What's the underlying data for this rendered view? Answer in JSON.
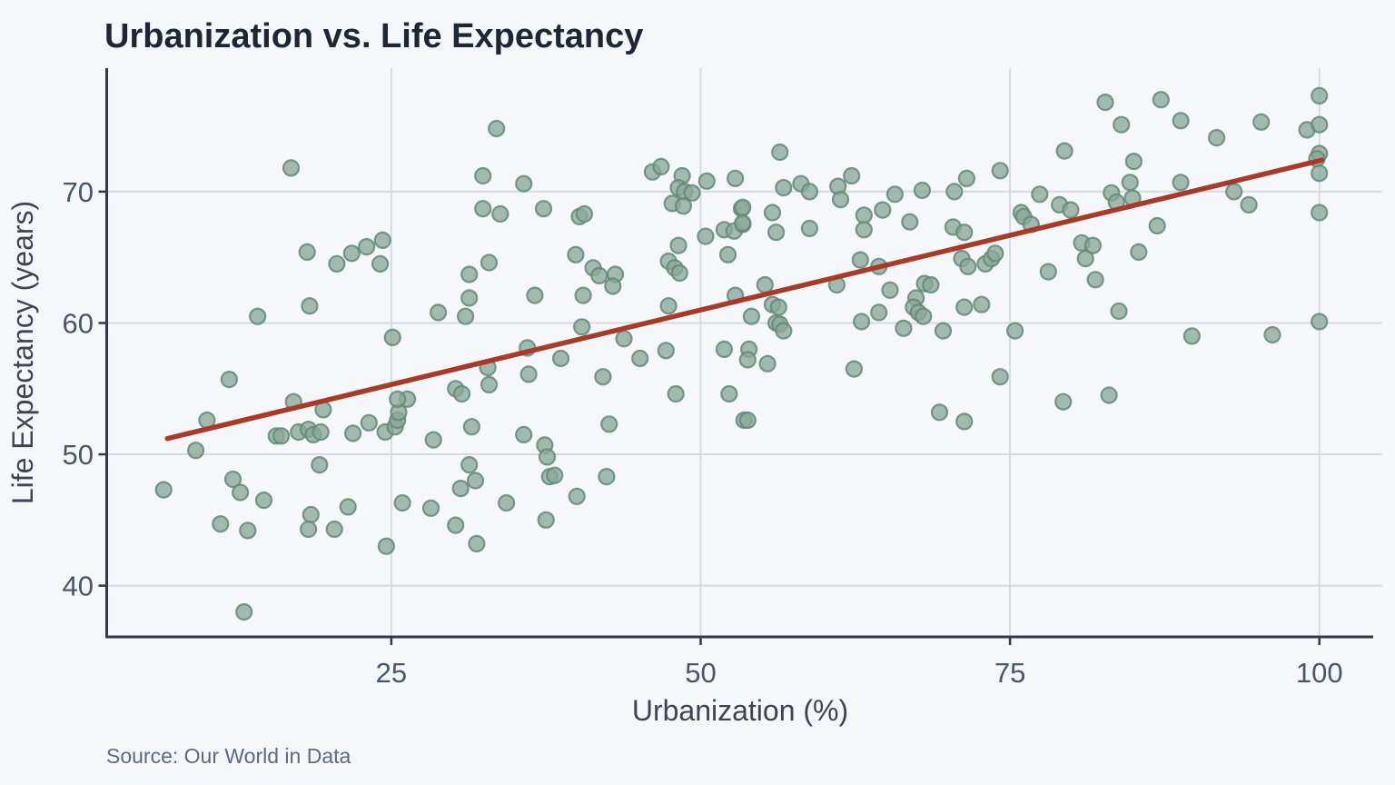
{
  "title": "Urbanization vs. Life Expectancy",
  "source": "Source: Our World in Data",
  "colors": {
    "background": "#f5f7fa",
    "gridline": "#d6dae3",
    "axis": "#323947",
    "tick_label": "#4a5568",
    "axis_title": "#3b4554",
    "title": "#1e2636",
    "source": "#5c6980",
    "point_fill": "#8aa89a",
    "point_stroke": "#628a76",
    "trend_line": "#a93a28"
  },
  "chart_data": {
    "type": "scatter",
    "title": "Urbanization vs. Life Expectancy",
    "xlabel": "Urbanization (%)",
    "ylabel": "Life Expectancy (years)",
    "x_ticks": [
      25,
      50,
      75,
      100
    ],
    "y_ticks": [
      40,
      50,
      60,
      70
    ],
    "xlim": [
      2.0,
      104.35
    ],
    "ylim": [
      36.1,
      79.4
    ],
    "grid": true,
    "legend": "none",
    "trend_line": {
      "x1": 6.9,
      "y1": 51.2,
      "x2": 100.2,
      "y2": 72.4
    },
    "points": [
      [
        16.9,
        71.8
      ],
      [
        18.2,
        65.4
      ],
      [
        20.6,
        64.5
      ],
      [
        21.8,
        65.3
      ],
      [
        23.0,
        65.8
      ],
      [
        24.3,
        66.3
      ],
      [
        24.1,
        64.5
      ],
      [
        18.4,
        61.3
      ],
      [
        14.2,
        60.5
      ],
      [
        25.1,
        58.9
      ],
      [
        11.9,
        55.7
      ],
      [
        10.1,
        52.6
      ],
      [
        9.2,
        50.3
      ],
      [
        17.1,
        54.0
      ],
      [
        19.5,
        53.4
      ],
      [
        15.7,
        51.4
      ],
      [
        16.1,
        51.4
      ],
      [
        17.5,
        51.7
      ],
      [
        18.3,
        51.9
      ],
      [
        18.7,
        51.5
      ],
      [
        19.3,
        51.7
      ],
      [
        21.9,
        51.6
      ],
      [
        23.2,
        52.4
      ],
      [
        24.5,
        51.7
      ],
      [
        25.3,
        52.1
      ],
      [
        25.5,
        52.6
      ],
      [
        25.6,
        53.2
      ],
      [
        26.3,
        54.2
      ],
      [
        25.5,
        54.2
      ],
      [
        19.2,
        49.2
      ],
      [
        6.6,
        47.3
      ],
      [
        12.2,
        48.1
      ],
      [
        12.8,
        47.1
      ],
      [
        14.7,
        46.5
      ],
      [
        18.5,
        45.4
      ],
      [
        18.3,
        44.3
      ],
      [
        21.5,
        46.0
      ],
      [
        20.4,
        44.3
      ],
      [
        11.2,
        44.7
      ],
      [
        13.4,
        44.2
      ],
      [
        25.9,
        46.3
      ],
      [
        24.6,
        43.0
      ],
      [
        13.1,
        38.0
      ],
      [
        33.5,
        74.8
      ],
      [
        32.4,
        71.2
      ],
      [
        35.7,
        70.6
      ],
      [
        46.1,
        71.5
      ],
      [
        46.8,
        71.9
      ],
      [
        48.5,
        71.2
      ],
      [
        48.2,
        70.3
      ],
      [
        48.7,
        70.0
      ],
      [
        49.3,
        69.9
      ],
      [
        50.5,
        70.8
      ],
      [
        52.8,
        71.0
      ],
      [
        32.4,
        68.7
      ],
      [
        33.8,
        68.3
      ],
      [
        37.3,
        68.7
      ],
      [
        40.2,
        68.1
      ],
      [
        40.6,
        68.3
      ],
      [
        47.7,
        69.1
      ],
      [
        48.6,
        68.9
      ],
      [
        53.3,
        68.7
      ],
      [
        51.9,
        67.1
      ],
      [
        52.7,
        67.0
      ],
      [
        53.4,
        67.5
      ],
      [
        50.4,
        66.6
      ],
      [
        48.2,
        65.9
      ],
      [
        39.9,
        65.2
      ],
      [
        32.9,
        64.6
      ],
      [
        31.3,
        63.7
      ],
      [
        41.3,
        64.2
      ],
      [
        41.8,
        63.6
      ],
      [
        43.1,
        63.7
      ],
      [
        42.9,
        62.8
      ],
      [
        47.4,
        64.7
      ],
      [
        47.9,
        64.2
      ],
      [
        48.3,
        63.8
      ],
      [
        52.2,
        65.2
      ],
      [
        31.3,
        61.9
      ],
      [
        31.0,
        60.5
      ],
      [
        28.8,
        60.8
      ],
      [
        36.6,
        62.1
      ],
      [
        40.5,
        62.1
      ],
      [
        40.4,
        59.7
      ],
      [
        43.8,
        58.8
      ],
      [
        47.4,
        61.3
      ],
      [
        52.8,
        62.1
      ],
      [
        36.0,
        58.1
      ],
      [
        47.2,
        57.9
      ],
      [
        51.9,
        58.0
      ],
      [
        30.2,
        55.0
      ],
      [
        30.7,
        54.6
      ],
      [
        32.8,
        56.6
      ],
      [
        32.9,
        55.3
      ],
      [
        36.1,
        56.1
      ],
      [
        38.7,
        57.3
      ],
      [
        42.1,
        55.9
      ],
      [
        42.6,
        52.3
      ],
      [
        45.1,
        57.3
      ],
      [
        48.0,
        54.6
      ],
      [
        52.3,
        54.6
      ],
      [
        53.5,
        52.6
      ],
      [
        28.4,
        51.1
      ],
      [
        31.5,
        52.1
      ],
      [
        35.7,
        51.5
      ],
      [
        37.4,
        50.7
      ],
      [
        37.6,
        49.8
      ],
      [
        31.3,
        49.2
      ],
      [
        31.8,
        48.0
      ],
      [
        30.6,
        47.4
      ],
      [
        37.8,
        48.3
      ],
      [
        38.2,
        48.4
      ],
      [
        42.4,
        48.3
      ],
      [
        40.0,
        46.8
      ],
      [
        34.3,
        46.3
      ],
      [
        28.2,
        45.9
      ],
      [
        30.2,
        44.6
      ],
      [
        37.5,
        45.0
      ],
      [
        31.9,
        43.2
      ],
      [
        56.4,
        73.0
      ],
      [
        56.7,
        70.3
      ],
      [
        58.1,
        70.6
      ],
      [
        58.8,
        70.0
      ],
      [
        61.1,
        70.4
      ],
      [
        62.2,
        71.2
      ],
      [
        61.3,
        69.4
      ],
      [
        65.7,
        69.8
      ],
      [
        67.9,
        70.1
      ],
      [
        70.5,
        70.0
      ],
      [
        71.5,
        71.0
      ],
      [
        74.2,
        71.6
      ],
      [
        77.4,
        69.8
      ],
      [
        79.0,
        69.0
      ],
      [
        53.4,
        68.8
      ],
      [
        53.4,
        67.6
      ],
      [
        55.8,
        68.4
      ],
      [
        56.1,
        66.9
      ],
      [
        58.8,
        67.2
      ],
      [
        63.2,
        68.2
      ],
      [
        63.2,
        67.1
      ],
      [
        64.7,
        68.6
      ],
      [
        66.9,
        67.7
      ],
      [
        70.4,
        67.3
      ],
      [
        71.3,
        66.9
      ],
      [
        75.9,
        68.4
      ],
      [
        76.1,
        68.1
      ],
      [
        76.7,
        67.5
      ],
      [
        62.9,
        64.8
      ],
      [
        64.4,
        64.3
      ],
      [
        71.1,
        64.9
      ],
      [
        71.6,
        64.3
      ],
      [
        73.0,
        64.5
      ],
      [
        73.5,
        64.9
      ],
      [
        73.8,
        65.3
      ],
      [
        78.1,
        63.9
      ],
      [
        55.2,
        62.9
      ],
      [
        61.0,
        62.9
      ],
      [
        65.3,
        62.5
      ],
      [
        68.1,
        63.0
      ],
      [
        68.6,
        62.9
      ],
      [
        67.4,
        61.9
      ],
      [
        67.2,
        61.2
      ],
      [
        67.6,
        60.8
      ],
      [
        68.0,
        60.5
      ],
      [
        55.8,
        61.4
      ],
      [
        56.3,
        61.2
      ],
      [
        54.1,
        60.5
      ],
      [
        56.1,
        60.0
      ],
      [
        56.4,
        59.9
      ],
      [
        56.7,
        59.4
      ],
      [
        63.0,
        60.1
      ],
      [
        64.4,
        60.8
      ],
      [
        66.4,
        59.6
      ],
      [
        69.6,
        59.4
      ],
      [
        71.3,
        61.2
      ],
      [
        72.7,
        61.4
      ],
      [
        75.4,
        59.4
      ],
      [
        53.9,
        58.0
      ],
      [
        53.8,
        57.2
      ],
      [
        55.4,
        56.9
      ],
      [
        62.4,
        56.5
      ],
      [
        74.2,
        55.9
      ],
      [
        53.8,
        52.6
      ],
      [
        69.3,
        53.2
      ],
      [
        71.3,
        52.5
      ],
      [
        82.7,
        76.8
      ],
      [
        87.2,
        77.0
      ],
      [
        84.0,
        75.1
      ],
      [
        88.8,
        75.4
      ],
      [
        91.7,
        74.1
      ],
      [
        95.3,
        75.3
      ],
      [
        99.0,
        74.7
      ],
      [
        100,
        77.3
      ],
      [
        100,
        75.1
      ],
      [
        79.4,
        73.1
      ],
      [
        85.0,
        72.3
      ],
      [
        100,
        72.9
      ],
      [
        99.8,
        72.5
      ],
      [
        100,
        71.4
      ],
      [
        84.7,
        70.7
      ],
      [
        88.8,
        70.7
      ],
      [
        83.2,
        69.9
      ],
      [
        83.6,
        69.2
      ],
      [
        84.9,
        69.5
      ],
      [
        79.9,
        68.6
      ],
      [
        93.1,
        70.0
      ],
      [
        94.3,
        69.0
      ],
      [
        100,
        68.4
      ],
      [
        86.9,
        67.4
      ],
      [
        80.8,
        66.1
      ],
      [
        81.7,
        65.9
      ],
      [
        81.1,
        64.9
      ],
      [
        85.4,
        65.4
      ],
      [
        81.9,
        63.3
      ],
      [
        83.8,
        60.9
      ],
      [
        100,
        60.1
      ],
      [
        89.7,
        59.0
      ],
      [
        96.2,
        59.1
      ],
      [
        79.3,
        54.0
      ],
      [
        83.0,
        54.5
      ]
    ]
  }
}
